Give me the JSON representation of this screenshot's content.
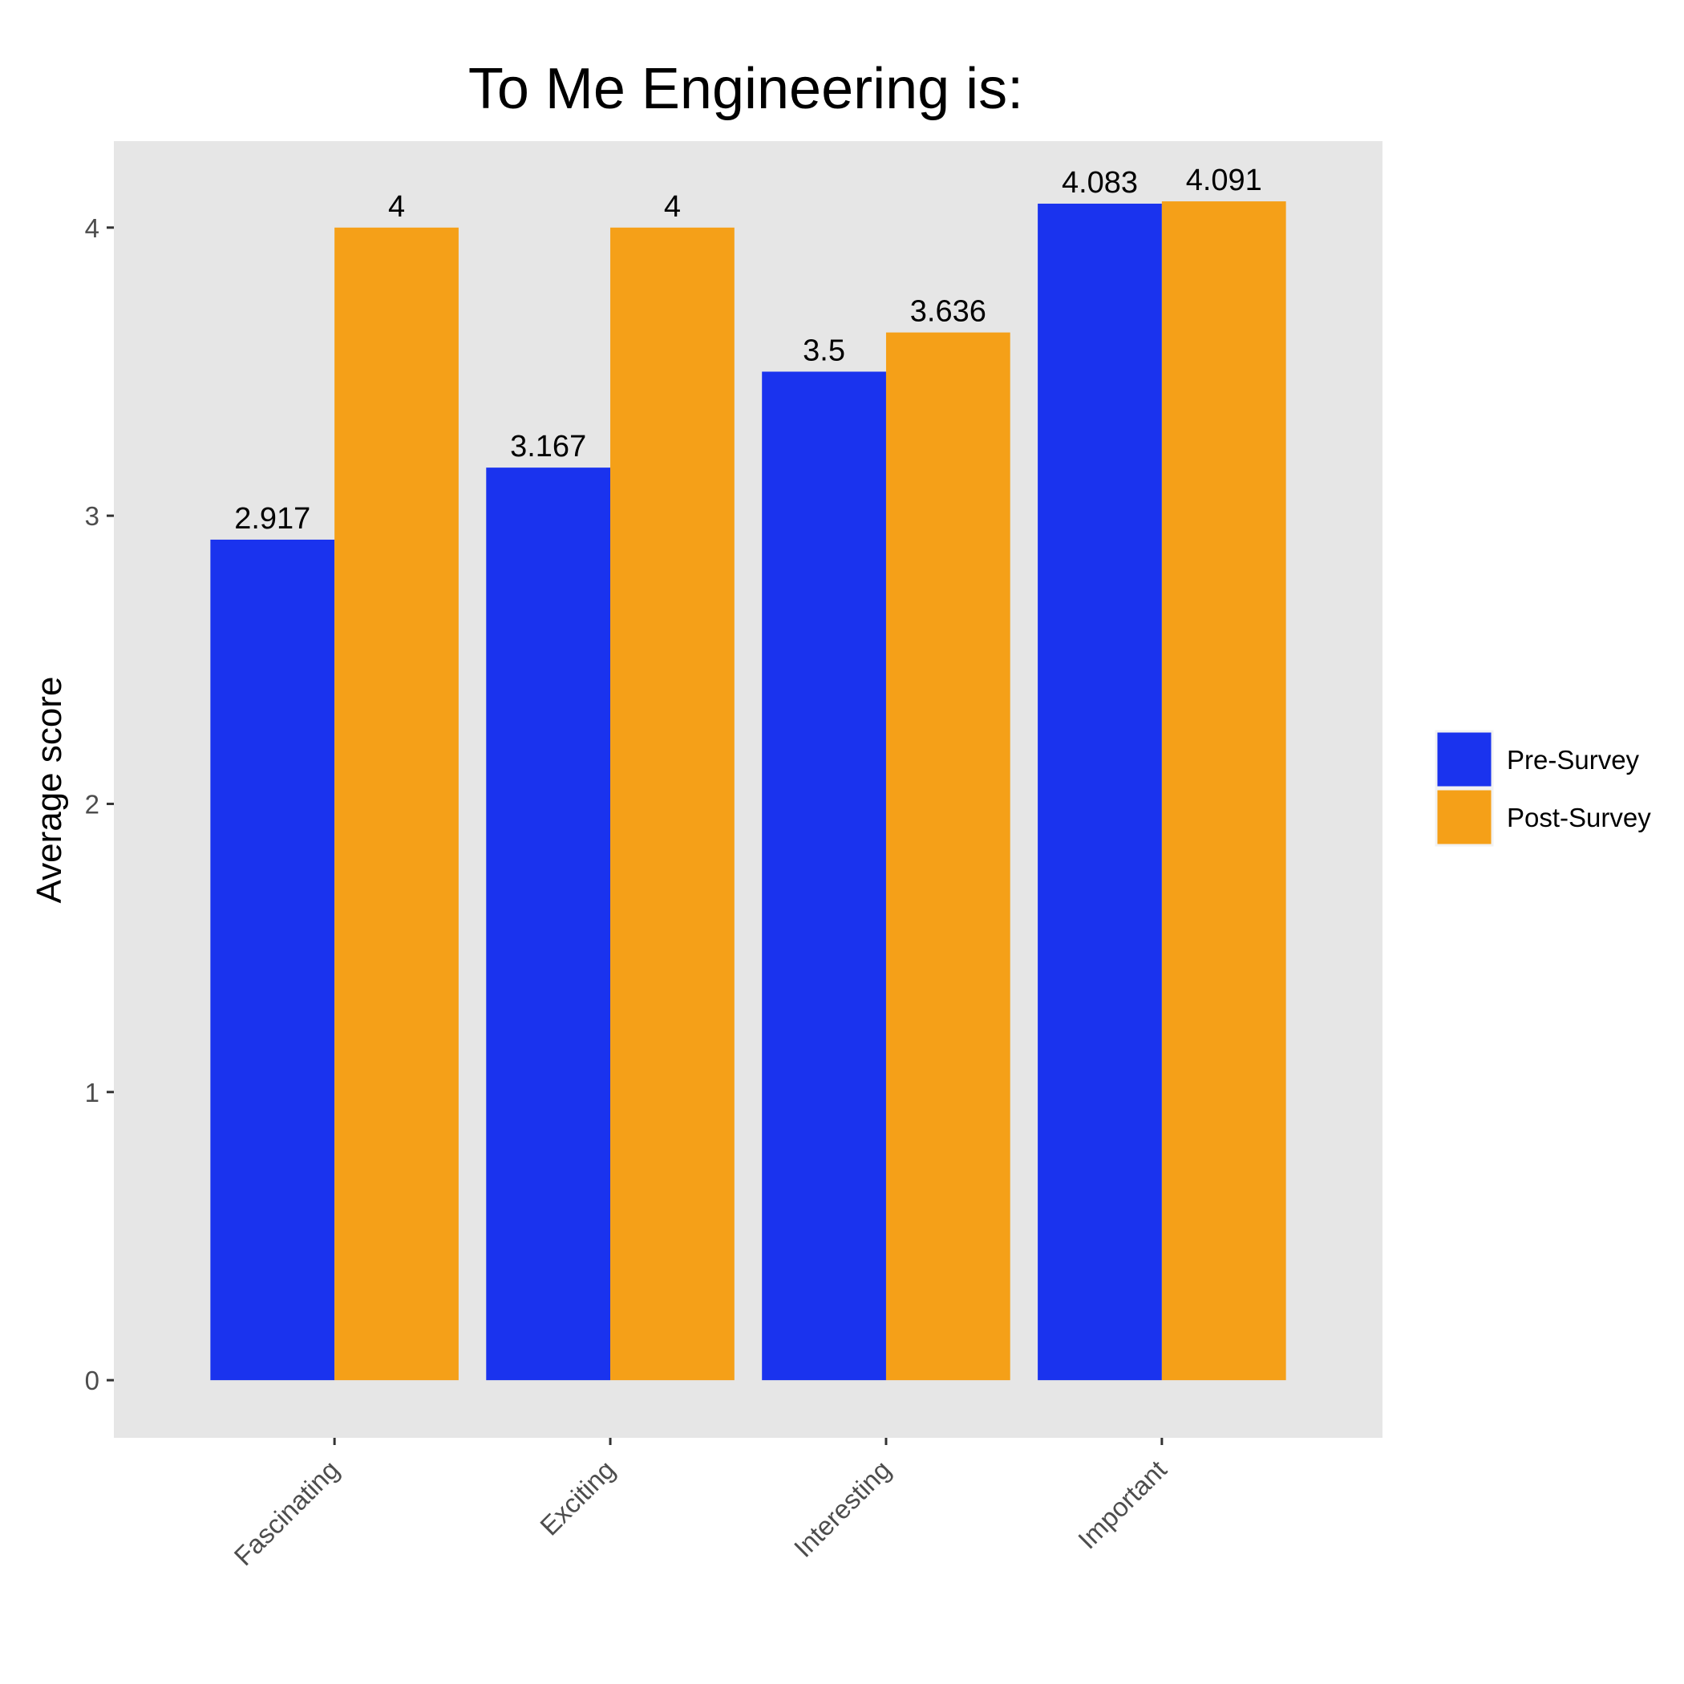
{
  "chart_data": {
    "type": "bar",
    "title": "To Me Engineering is:",
    "xlabel": "",
    "ylabel": "Average score",
    "categories": [
      "Fascinating",
      "Exciting",
      "Interesting",
      "Important"
    ],
    "series": [
      {
        "name": "Pre-Survey",
        "color": "#1a33ee",
        "values": [
          2.917,
          3.167,
          3.5,
          4.083
        ],
        "labels": [
          "2.917",
          "3.167",
          "3.5",
          "4.083"
        ]
      },
      {
        "name": "Post-Survey",
        "color": "#f5a018",
        "values": [
          4,
          4,
          3.636,
          4.091
        ],
        "labels": [
          "4",
          "4",
          "3.636",
          "4.091"
        ]
      }
    ],
    "ylim": [
      -0.2,
      4.3
    ],
    "yticks": [
      0,
      1,
      2,
      3,
      4
    ],
    "ytick_labels": [
      "0",
      "1",
      "2",
      "3",
      "4"
    ],
    "panel_background": "#e6e6e6",
    "grid": false,
    "legend_position": "right"
  }
}
